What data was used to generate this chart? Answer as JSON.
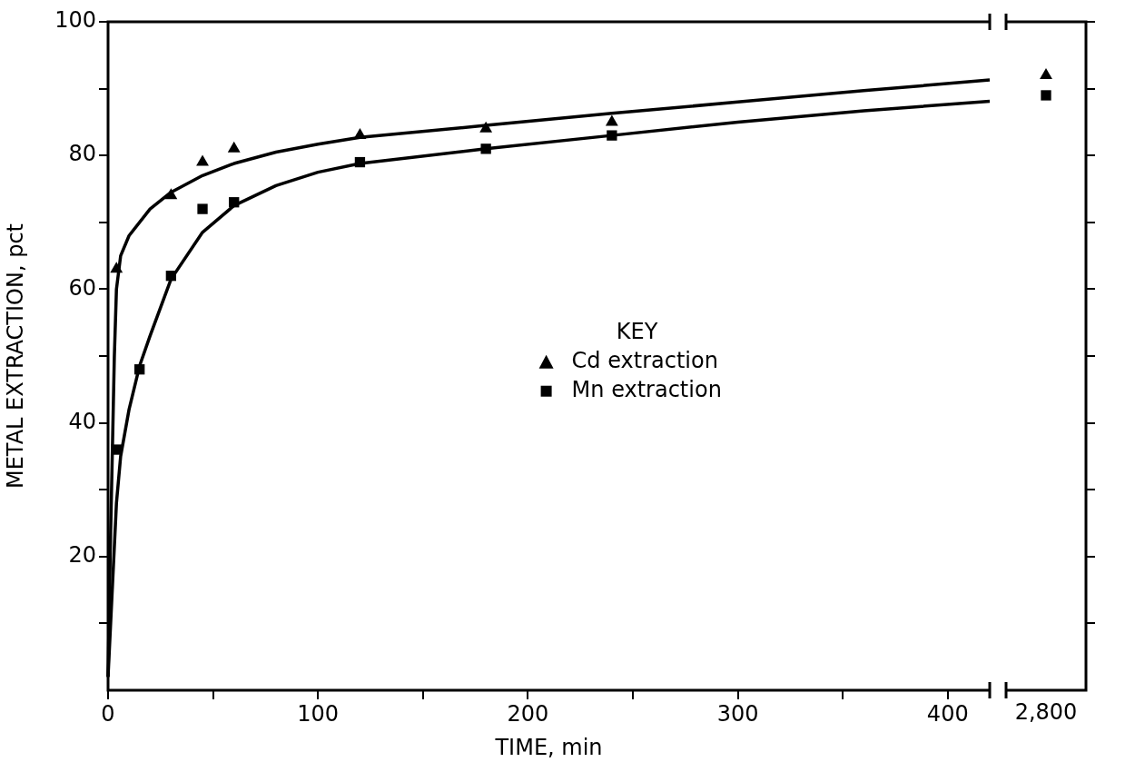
{
  "chart_data": [
    {
      "type": "scatter",
      "xlabel": "TIME, min",
      "ylabel": "METAL EXTRACTION, pct",
      "legend_title": "KEY",
      "legend": "center",
      "xlim": [
        0,
        420
      ],
      "xticks": [
        0,
        {
          "value": 50,
          "label": null
        },
        100,
        {
          "value": 150,
          "label": null
        },
        200,
        {
          "value": 250,
          "label": null
        },
        300,
        {
          "value": 350,
          "label": null
        },
        400
      ],
      "ylim": [
        0,
        100
      ],
      "yticks": [
        {
          "value": 10,
          "label": null
        },
        20,
        {
          "value": 30,
          "label": null
        },
        40,
        {
          "value": 50,
          "label": null
        },
        60,
        {
          "value": 70,
          "label": null
        },
        80,
        {
          "value": 90,
          "label": null
        },
        100
      ],
      "series": [
        {
          "name": "Cd extraction",
          "color": "#000000",
          "marker": "triangle",
          "x": [
            4,
            30,
            45,
            60,
            120,
            180,
            240
          ],
          "values": [
            63,
            74,
            79,
            81,
            83,
            84,
            85
          ]
        },
        {
          "name": "Mn extraction",
          "color": "#000000",
          "marker": "square",
          "x": [
            4,
            15,
            30,
            45,
            60,
            120,
            180,
            240
          ],
          "values": [
            36,
            48,
            62,
            72,
            73,
            79,
            81,
            83
          ]
        },
        {
          "type": "line",
          "color": "#000000",
          "marker": "none",
          "x": [
            0,
            1,
            2,
            3,
            4,
            6,
            10,
            20,
            30,
            45,
            60,
            80,
            100,
            120,
            180,
            240,
            300,
            360,
            420
          ],
          "values": [
            2,
            20,
            35,
            50,
            60,
            65,
            68,
            72,
            74.5,
            77,
            78.8,
            80.5,
            81.7,
            82.7,
            84.5,
            86.3,
            88,
            89.7,
            91.3
          ]
        },
        {
          "type": "line",
          "color": "#000000",
          "marker": "none",
          "x": [
            0,
            2,
            4,
            6,
            10,
            15,
            20,
            30,
            45,
            60,
            80,
            100,
            120,
            180,
            240,
            300,
            360,
            420
          ],
          "values": [
            2,
            15,
            28,
            35,
            42,
            48.5,
            53,
            61.5,
            68.5,
            72.5,
            75.5,
            77.5,
            78.8,
            81,
            83,
            85,
            86.7,
            88.1
          ]
        }
      ]
    },
    {
      "type": "scatter",
      "categories": [
        "2,800"
      ],
      "tick_labels": "x",
      "ylim": [
        0,
        100
      ],
      "yticks": [
        {
          "value": 10,
          "label": null
        },
        20,
        {
          "value": 30,
          "label": null
        },
        40,
        {
          "value": 50,
          "label": null
        },
        60,
        {
          "value": 70,
          "label": null
        },
        80,
        {
          "value": 90,
          "label": null
        },
        100
      ],
      "series": [
        {
          "color": "#000000",
          "marker": "triangle",
          "values": [
            92
          ]
        },
        {
          "color": "#000000",
          "marker": "square",
          "values": [
            89
          ]
        }
      ]
    }
  ]
}
